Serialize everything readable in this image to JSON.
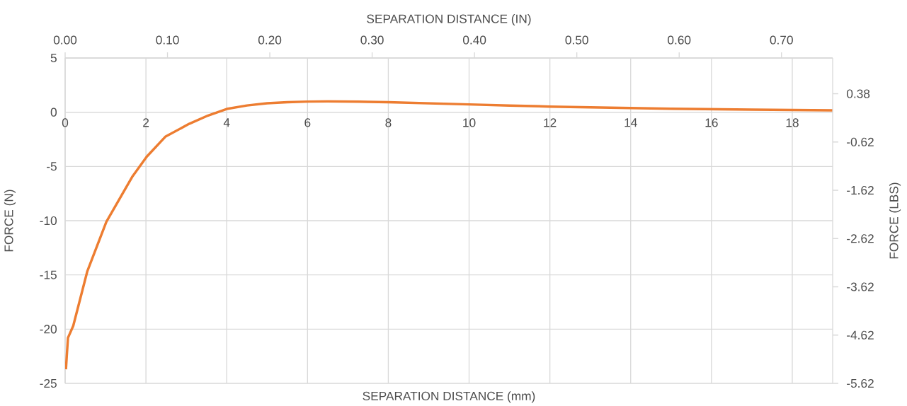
{
  "chart_data": {
    "type": "line",
    "xlabel": "SEPARATION DISTANCE (mm)",
    "x2label": "SEPARATION DISTANCE (IN)",
    "ylabel": "FORCE (N)",
    "y2label": "FORCE (LBS)",
    "xlim": [
      0,
      19
    ],
    "xticks": [
      0,
      2,
      4,
      6,
      8,
      10,
      12,
      14,
      16,
      18
    ],
    "x2lim": [
      0,
      0.75
    ],
    "x2ticks": [
      {
        "value": 0,
        "label": "0.00"
      },
      {
        "value": 0.1,
        "label": "0.10"
      },
      {
        "value": 0.2,
        "label": "0.20"
      },
      {
        "value": 0.3,
        "label": "0.30"
      },
      {
        "value": 0.4,
        "label": "0.40"
      },
      {
        "value": 0.5,
        "label": "0.50"
      },
      {
        "value": 0.6,
        "label": "0.60"
      },
      {
        "value": 0.7,
        "label": "0.70"
      }
    ],
    "ylim": [
      -25,
      5
    ],
    "yticks": [
      -25,
      -20,
      -15,
      -10,
      -5,
      0,
      5
    ],
    "y2lim": [
      -5.62,
      1.12
    ],
    "y2ticks": [
      -5.62,
      -4.62,
      -3.62,
      -2.62,
      -1.62,
      -0.62,
      0.38
    ],
    "grid": true,
    "x": [
      0.02,
      0.04,
      0.07,
      0.2,
      0.55,
      1.02,
      1.66,
      2.02,
      2.48,
      3.07,
      3.54,
      4.0,
      4.5,
      5.0,
      5.5,
      6.0,
      6.5,
      7.0,
      7.5,
      8.0,
      9.0,
      10.0,
      11.0,
      12.0,
      13.0,
      14.0,
      15.0,
      16.0,
      17.0,
      18.0,
      19.0
    ],
    "series": [
      {
        "color": "#ed7d31",
        "values": [
          -23.7,
          -22.5,
          -20.8,
          -19.7,
          -14.65,
          -10.1,
          -5.96,
          -4.1,
          -2.26,
          -1.07,
          -0.3,
          0.3,
          0.62,
          0.82,
          0.92,
          0.98,
          1.0,
          0.98,
          0.96,
          0.92,
          0.82,
          0.72,
          0.62,
          0.52,
          0.45,
          0.38,
          0.32,
          0.28,
          0.24,
          0.2,
          0.17
        ]
      }
    ]
  }
}
